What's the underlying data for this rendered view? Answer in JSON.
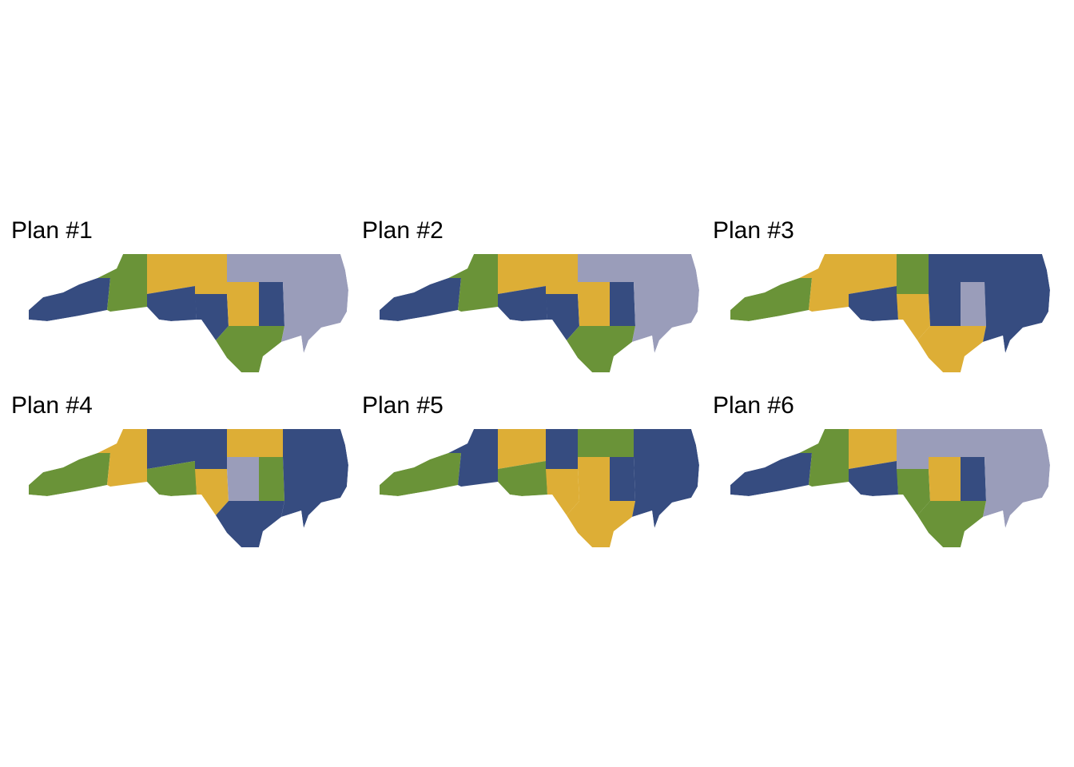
{
  "colors": {
    "navy": "#364C80",
    "green": "#6A9338",
    "gold": "#DDAE36",
    "lavender": "#9A9DBA"
  },
  "plans": [
    {
      "title": "Plan #1",
      "regions": [
        "navy",
        "green",
        "gold",
        "navy",
        "gold",
        "navy",
        "lavender",
        "gold",
        "navy",
        "green",
        "lavender"
      ]
    },
    {
      "title": "Plan #2",
      "regions": [
        "navy",
        "green",
        "gold",
        "navy",
        "gold",
        "navy",
        "lavender",
        "gold",
        "navy",
        "green",
        "lavender"
      ]
    },
    {
      "title": "Plan #3",
      "regions": [
        "green",
        "gold",
        "gold",
        "navy",
        "green",
        "gold",
        "navy",
        "navy",
        "lavender",
        "gold",
        "navy"
      ]
    },
    {
      "title": "Plan #4",
      "regions": [
        "green",
        "gold",
        "navy",
        "green",
        "navy",
        "gold",
        "gold",
        "lavender",
        "green",
        "navy",
        "navy"
      ]
    },
    {
      "title": "Plan #5",
      "regions": [
        "green",
        "navy",
        "gold",
        "green",
        "navy",
        "gold",
        "green",
        "gold",
        "navy",
        "gold",
        "navy"
      ]
    },
    {
      "title": "Plan #6",
      "regions": [
        "navy",
        "green",
        "gold",
        "navy",
        "lavender",
        "green",
        "lavender",
        "gold",
        "navy",
        "green",
        "lavender"
      ]
    }
  ]
}
